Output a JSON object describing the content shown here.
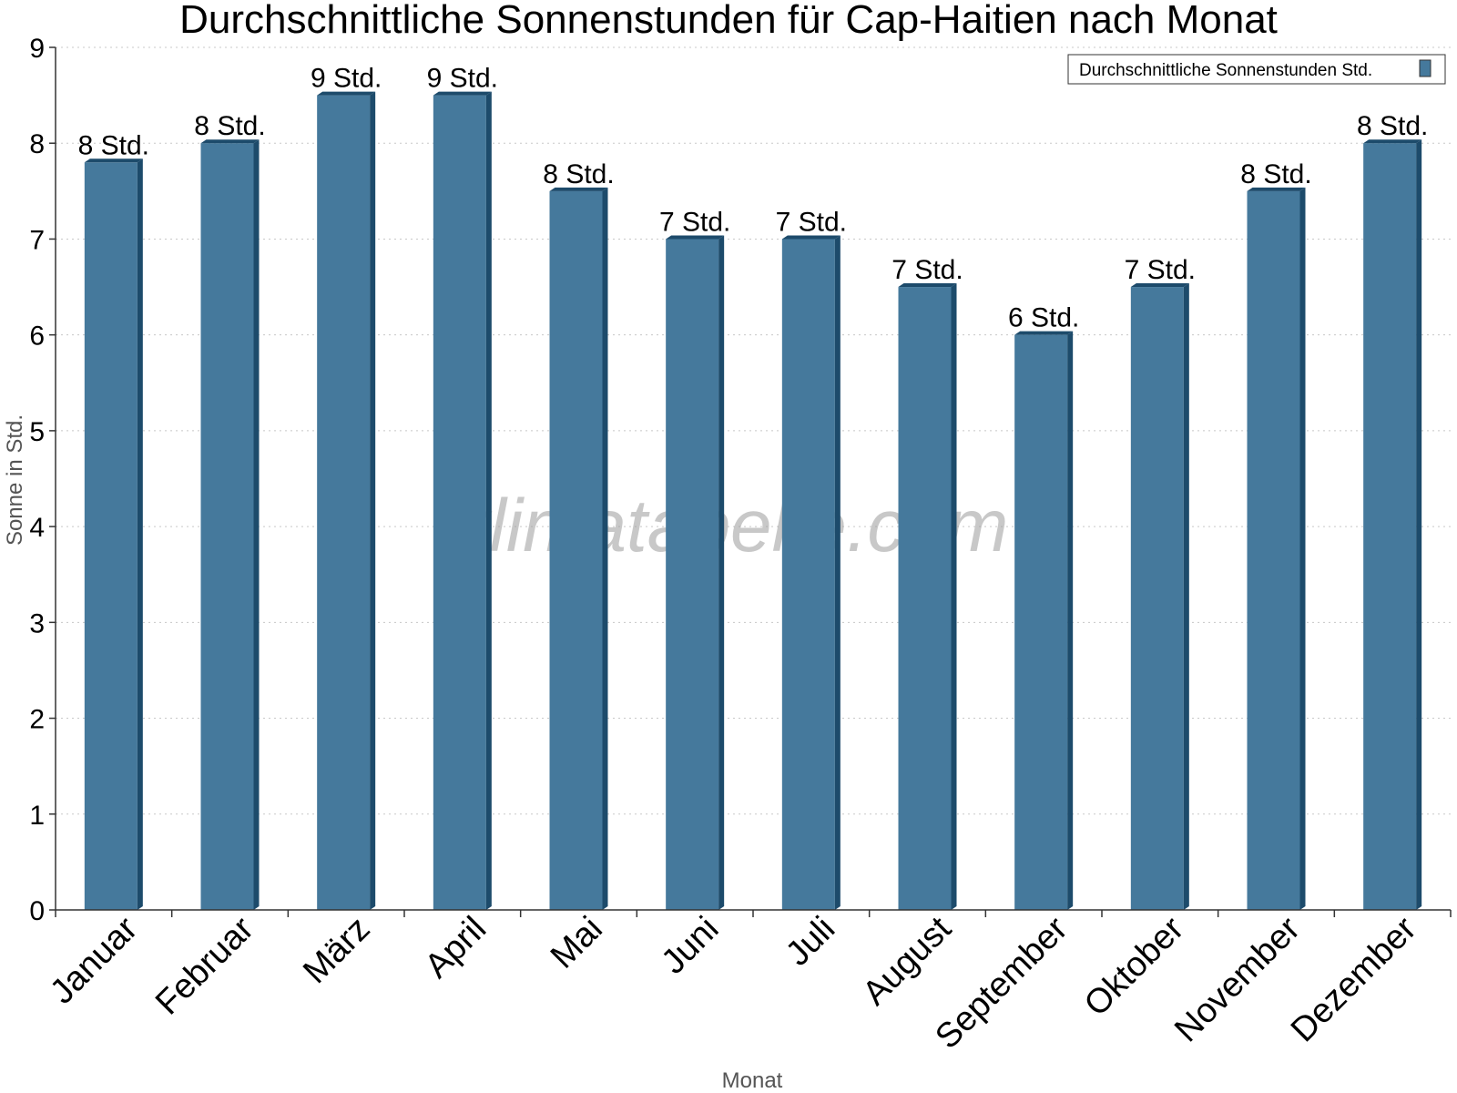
{
  "chart_data": {
    "type": "bar",
    "title": "Durchschnittliche Sonnenstunden für Cap-Haitien nach Monat",
    "xlabel": "Monat",
    "ylabel": "Sonne in Std.",
    "categories": [
      "Januar",
      "Februar",
      "März",
      "April",
      "Mai",
      "Juni",
      "Juli",
      "August",
      "September",
      "Oktober",
      "November",
      "Dezember"
    ],
    "series": [
      {
        "name": "Durchschnittliche Sonnenstunden Std.",
        "values": [
          7.8,
          8.0,
          8.5,
          8.5,
          7.5,
          7.0,
          7.0,
          6.5,
          6.0,
          6.5,
          7.5,
          8.0
        ],
        "data_labels": [
          "8 Std.",
          "8 Std.",
          "9 Std.",
          "9 Std.",
          "8 Std.",
          "7 Std.",
          "7 Std.",
          "7 Std.",
          "6 Std.",
          "7 Std.",
          "8 Std.",
          "8 Std."
        ],
        "color": "#45799c",
        "side_color": "#1d4b6b"
      }
    ],
    "yticks": [
      "0",
      "1",
      "2",
      "3",
      "4",
      "5",
      "6",
      "7",
      "8",
      "9"
    ],
    "ylim": [
      0,
      9
    ],
    "grid": true,
    "legend_position": "top-right",
    "watermark": "klimatabelle.com"
  }
}
